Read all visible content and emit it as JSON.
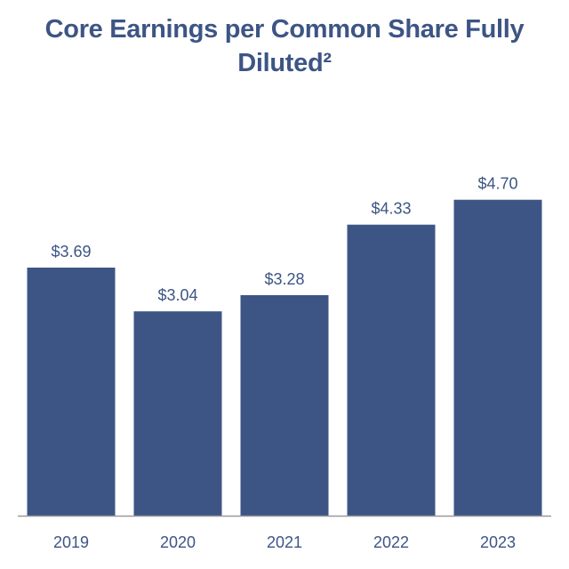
{
  "chart_data": {
    "type": "bar",
    "title": "Core Earnings per Common Share Fully Diluted²",
    "categories": [
      "2019",
      "2020",
      "2021",
      "2022",
      "2023"
    ],
    "values": [
      3.69,
      3.04,
      3.28,
      4.33,
      4.7
    ],
    "data_labels": [
      "$3.69",
      "$3.04",
      "$3.28",
      "$4.33",
      "$4.70"
    ],
    "xlabel": "",
    "ylabel": "",
    "ylim": [
      0,
      5.7
    ],
    "grid": false,
    "legend": "none"
  },
  "colors": {
    "bar": "#3d5585",
    "title": "#3d5585",
    "data_label": "#3d5585",
    "tick_label": "#3d5585",
    "axis_line": "#9a9a9a"
  }
}
